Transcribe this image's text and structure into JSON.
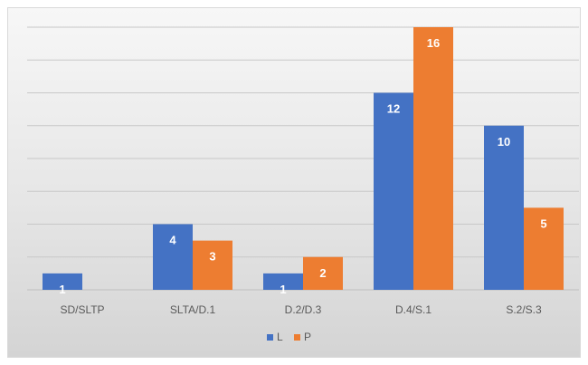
{
  "chart_data": {
    "type": "bar",
    "categories": [
      "SD/SLTP",
      "SLTA/D.1",
      "D.2/D.3",
      "D.4/S.1",
      "S.2/S.3"
    ],
    "series": [
      {
        "name": "L",
        "color": "#4472C4",
        "values": [
          1,
          4,
          1,
          12,
          10
        ]
      },
      {
        "name": "P",
        "color": "#ED7D31",
        "values": [
          0,
          3,
          2,
          16,
          5
        ]
      }
    ],
    "ylim": [
      0,
      16
    ],
    "grid": true,
    "legend_position": "bottom",
    "title": "",
    "xlabel": "",
    "ylabel": ""
  }
}
